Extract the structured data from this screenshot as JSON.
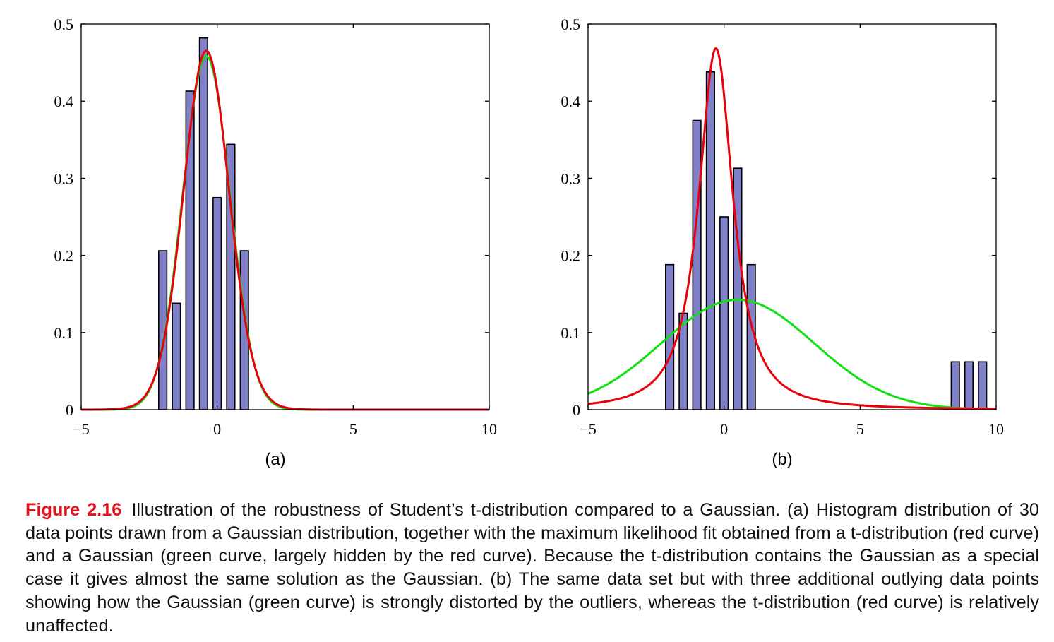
{
  "colors": {
    "bar_fill": "#8080c8",
    "bar_stroke": "#000000",
    "t_curve": "#e8000b",
    "gaussian_curve": "#11e011",
    "caption_label": "#e4101b"
  },
  "chart_data": [
    {
      "id": "a",
      "type": "bar",
      "panel_label": "(a)",
      "xlim": [
        -5,
        10
      ],
      "ylim": [
        0,
        0.5
      ],
      "xticks": [
        -5,
        0,
        5,
        10
      ],
      "xtick_labels": [
        "−5",
        "0",
        "5",
        "10"
      ],
      "yticks": [
        0,
        0.1,
        0.2,
        0.3,
        0.4,
        0.5
      ],
      "ytick_labels": [
        "0",
        "0.1",
        "0.2",
        "0.3",
        "0.4",
        "0.5"
      ],
      "bin_centers": [
        -2.0,
        -1.5,
        -1.0,
        -0.5,
        0.0,
        0.5,
        1.0
      ],
      "bar_width": 0.3,
      "values": [
        0.206,
        0.138,
        0.413,
        0.482,
        0.275,
        0.344,
        0.206
      ],
      "curves": [
        {
          "name": "Gaussian (green curve)",
          "kind": "gaussian",
          "mu": -0.4,
          "sigma": 0.87,
          "color_key": "gaussian_curve"
        },
        {
          "name": "t-distribution (red curve)",
          "kind": "student_t",
          "mu": -0.4,
          "scale": 0.85,
          "nu": 30,
          "color_key": "t_curve"
        }
      ]
    },
    {
      "id": "b",
      "type": "bar",
      "panel_label": "(b)",
      "xlim": [
        -5,
        10
      ],
      "ylim": [
        0,
        0.5
      ],
      "xticks": [
        -5,
        0,
        5,
        10
      ],
      "xtick_labels": [
        "−5",
        "0",
        "5",
        "10"
      ],
      "yticks": [
        0,
        0.1,
        0.2,
        0.3,
        0.4,
        0.5
      ],
      "ytick_labels": [
        "0",
        "0.1",
        "0.2",
        "0.3",
        "0.4",
        "0.5"
      ],
      "bin_centers": [
        -2.0,
        -1.5,
        -1.0,
        -0.5,
        0.0,
        0.5,
        1.0,
        8.5,
        9.0,
        9.5
      ],
      "bar_width": 0.3,
      "values": [
        0.188,
        0.125,
        0.375,
        0.438,
        0.25,
        0.313,
        0.188,
        0.062,
        0.062,
        0.062
      ],
      "curves": [
        {
          "name": "Gaussian (green curve)",
          "kind": "gaussian",
          "mu": 0.5,
          "sigma": 2.8,
          "color_key": "gaussian_curve"
        },
        {
          "name": "t-distribution (red curve)",
          "kind": "student_t",
          "mu": -0.3,
          "scale": 0.72,
          "nu": 1.4,
          "color_key": "t_curve"
        }
      ]
    }
  ],
  "caption": {
    "label": "Figure 2.16",
    "text": "Illustration of the robustness of Student’s t-distribution compared to a Gaussian.  (a) Histogram distribution of 30 data points drawn from a Gaussian distribution, together with the maximum likelihood fit obtained from a t-distribution (red curve) and a Gaussian (green curve, largely hidden by the red curve). Because the t-distribution contains the Gaussian as a special case it gives almost the same solution as the Gaussian. (b) The same data set but with three additional outlying data points showing how the Gaussian (green curve) is strongly distorted by the outliers, whereas the t-distribution (red curve) is relatively unaffected."
  }
}
